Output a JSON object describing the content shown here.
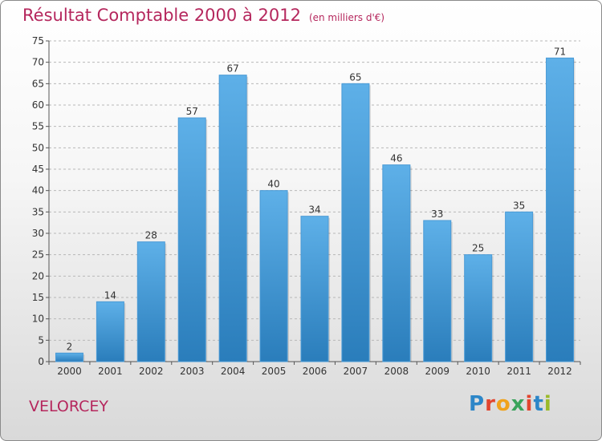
{
  "title": "Résultat Comptable 2000 à 2012",
  "subtitle": "(en milliers d'€)",
  "commune": "VELORCEY",
  "logo": {
    "letters": [
      "P",
      "r",
      "o",
      "x",
      "i",
      "t",
      "i"
    ],
    "colors": [
      "#2c86c8",
      "#e2452f",
      "#f0a21c",
      "#3aa35b",
      "#e2452f",
      "#2c86c8",
      "#9aba2a"
    ]
  },
  "colors": {
    "title": "#b5275d",
    "bar_light": "#5eb0e8",
    "bar_dark": "#2a7dbb",
    "grid": "#b8b8b8"
  },
  "chart_data": {
    "type": "bar",
    "title": "Résultat Comptable 2000 à 2012",
    "subtitle": "(en milliers d'€)",
    "categories": [
      "2000",
      "2001",
      "2002",
      "2003",
      "2004",
      "2005",
      "2006",
      "2007",
      "2008",
      "2009",
      "2010",
      "2011",
      "2012"
    ],
    "values": [
      2,
      14,
      28,
      57,
      67,
      40,
      34,
      65,
      46,
      33,
      25,
      35,
      71
    ],
    "yticks": [
      0,
      5,
      10,
      15,
      20,
      25,
      30,
      35,
      40,
      45,
      50,
      55,
      60,
      65,
      70,
      75
    ],
    "ylim": [
      0,
      75
    ],
    "grid": true,
    "legend": "none"
  }
}
